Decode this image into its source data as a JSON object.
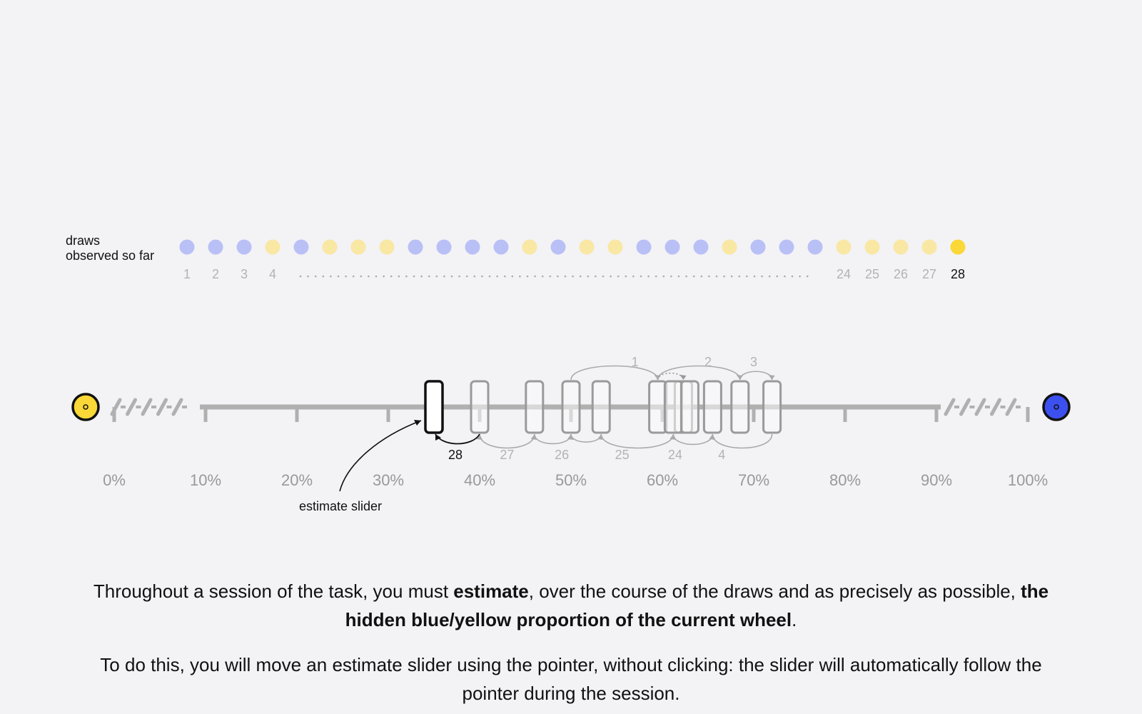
{
  "draws": {
    "label_line1": "draws",
    "label_line2": "observed so far",
    "sequence": [
      "blue",
      "blue",
      "blue",
      "yellow",
      "blue",
      "yellow",
      "yellow",
      "yellow",
      "blue",
      "blue",
      "blue",
      "blue",
      "yellow",
      "blue",
      "yellow",
      "yellow",
      "blue",
      "blue",
      "blue",
      "yellow",
      "blue",
      "blue",
      "blue",
      "yellow",
      "yellow",
      "yellow",
      "yellow",
      "yellow"
    ],
    "number_labels": [
      "1",
      "2",
      "3",
      "4",
      "24",
      "25",
      "26",
      "27",
      "28"
    ],
    "current": "28"
  },
  "scale": {
    "tick_labels": [
      "0%",
      "10%",
      "20%",
      "30%",
      "40%",
      "50%",
      "60%",
      "70%",
      "80%",
      "90%",
      "100%"
    ],
    "left_pole_color": "yellow",
    "right_pole_color": "blue"
  },
  "estimates": {
    "history": [
      {
        "draw": "1",
        "value_pct": 59.5
      },
      {
        "draw": "2",
        "value_pct": 62.3
      },
      {
        "draw": "3",
        "value_pct": 68.5
      },
      {
        "draw": "4",
        "value_pct": 65.5
      },
      {
        "draw": "24",
        "value_pct": 61.2
      },
      {
        "draw": "25",
        "value_pct": 53.3
      },
      {
        "draw": "26",
        "value_pct": 50.0
      },
      {
        "draw": "27",
        "value_pct": 46.0
      },
      {
        "draw": "28",
        "value_pct": 35.0
      },
      {
        "draw": "",
        "value_pct": 72.0
      },
      {
        "draw": "",
        "value_pct": 40.0
      },
      {
        "draw": "",
        "value_pct": 63.0
      }
    ],
    "current_value_pct": 35.0,
    "slider_annotation": "estimate slider"
  },
  "colors": {
    "blue": "#3c50f0",
    "blue_faded": "#b9c0f6",
    "yellow": "#f9d838",
    "yellow_faded": "#f9e7a4",
    "background": "#f3f2f5"
  },
  "instructions": {
    "p1_a": "Throughout a session of the task, you must ",
    "p1_b": "estimate",
    "p1_c": ", over the course of the draws and as precisely as possible, ",
    "p1_d": "the hidden blue/yellow proportion of the current wheel",
    "p1_e": ".",
    "p2": "To do this, you will move an estimate slider using the pointer, without clicking: the slider will automatically follow the pointer during the session."
  }
}
